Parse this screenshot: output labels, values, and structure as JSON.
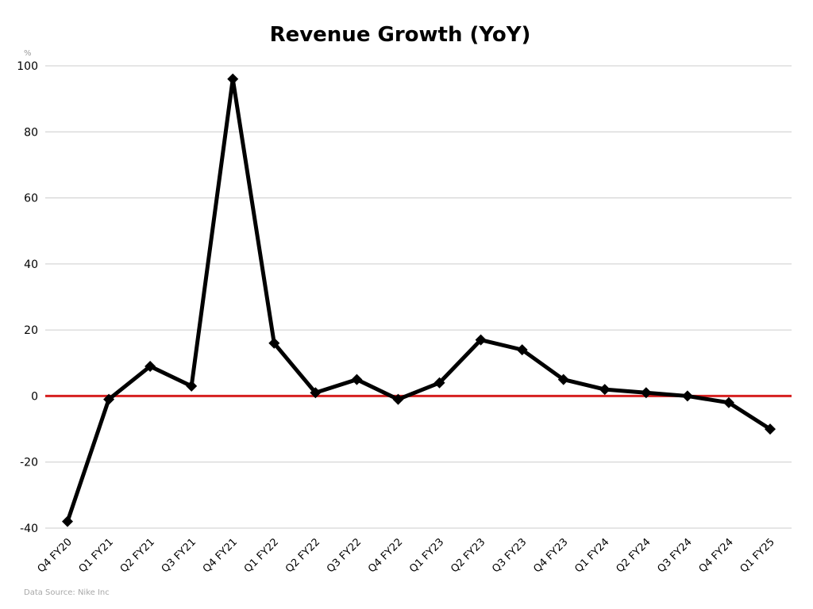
{
  "chart_data": {
    "type": "line",
    "title": "Revenue Growth (YoY)",
    "ylabel": "%",
    "xlabel": "",
    "source": "Data Source: Nike Inc",
    "ylim": [
      -40,
      100
    ],
    "yticks": [
      -40,
      -20,
      0,
      20,
      40,
      60,
      80,
      100
    ],
    "grid": true,
    "reference_line": {
      "value": 0,
      "color": "#d62020"
    },
    "categories": [
      "Q4 FY20",
      "Q1 FY21",
      "Q2 FY21",
      "Q3 FY21",
      "Q4 FY21",
      "Q1 FY22",
      "Q2 FY22",
      "Q3 FY22",
      "Q4 FY22",
      "Q1 FY23",
      "Q2 FY23",
      "Q3 FY23",
      "Q4 FY23",
      "Q1 FY24",
      "Q2 FY24",
      "Q3 FY24",
      "Q4 FY24",
      "Q1 FY25"
    ],
    "series": [
      {
        "name": "Revenue Growth (YoY)",
        "color": "#000000",
        "marker": "diamond",
        "values": [
          -38,
          -1,
          9,
          3,
          96,
          16,
          1,
          5,
          -1,
          4,
          17,
          14,
          5,
          2,
          1,
          0,
          -2,
          -10
        ]
      }
    ]
  }
}
